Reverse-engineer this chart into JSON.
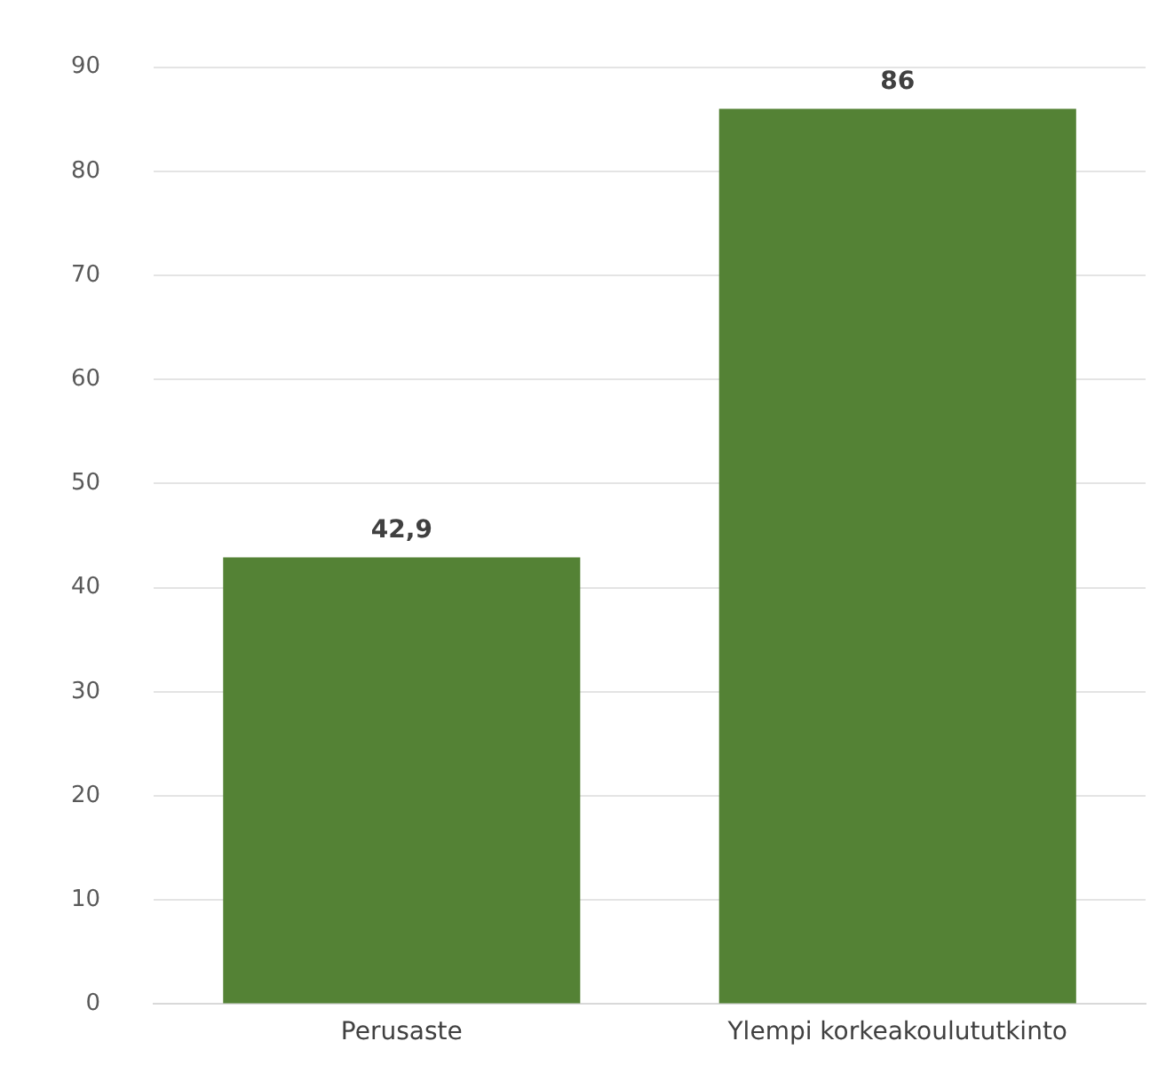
{
  "chart_data": {
    "type": "bar",
    "categories": [
      "Perusaste",
      "Ylempi korkeakoulututkinto"
    ],
    "values": [
      42.9,
      86
    ],
    "color": "#548235",
    "value_labels": [
      "42,9",
      "86"
    ],
    "ylim": [
      0,
      90
    ],
    "yticks": [
      0,
      10,
      20,
      30,
      40,
      50,
      60,
      70,
      80,
      90
    ],
    "grid": "y",
    "legend": false
  }
}
